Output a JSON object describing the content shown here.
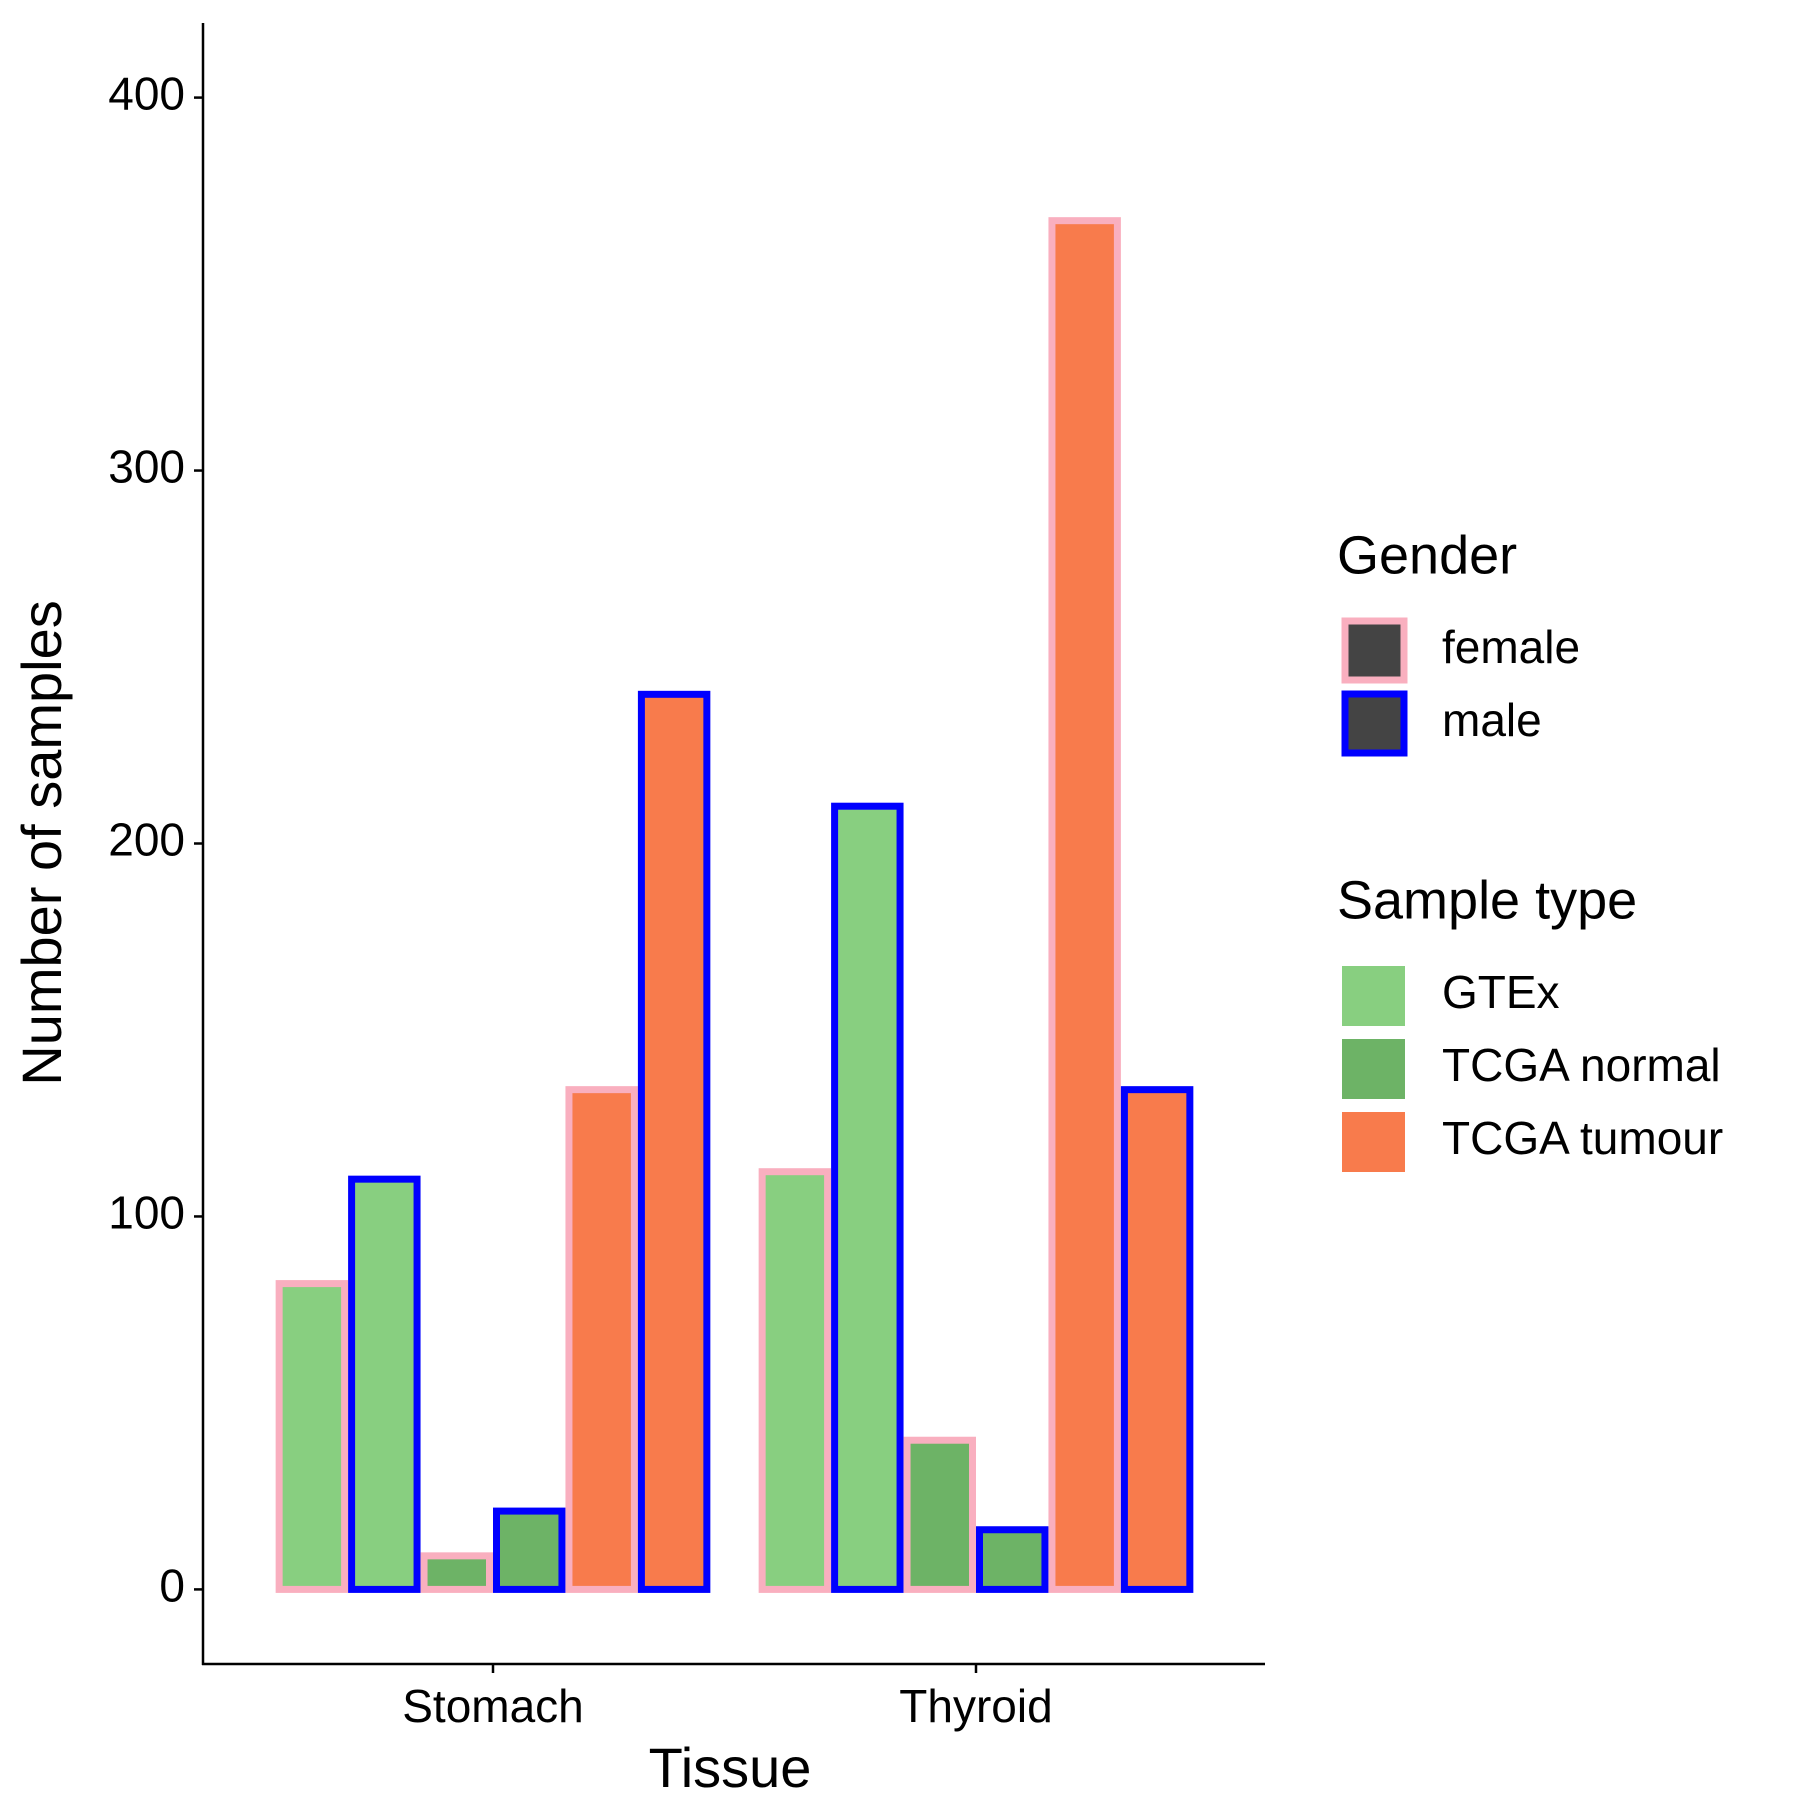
{
  "chart_data": {
    "type": "bar",
    "x_label": "Tissue",
    "y_label": "Number of samples",
    "categories": [
      "Stomach",
      "Thyroid"
    ],
    "series": [
      {
        "name": "GTEx",
        "gender": "female",
        "color": "#88cf80",
        "edgecolor": "#f9afbf",
        "values": [
          82,
          112
        ]
      },
      {
        "name": "GTEx",
        "gender": "male",
        "color": "#88cf80",
        "edgecolor": "#0000ff",
        "values": [
          110,
          210
        ]
      },
      {
        "name": "TCGA normal",
        "gender": "female",
        "color": "#6db366",
        "edgecolor": "#f9afbf",
        "values": [
          9,
          40
        ]
      },
      {
        "name": "TCGA normal",
        "gender": "male",
        "color": "#6db366",
        "edgecolor": "#0000ff",
        "values": [
          21,
          16
        ]
      },
      {
        "name": "TCGA tumour",
        "gender": "female",
        "color": "#f87b4c",
        "edgecolor": "#f9afbf",
        "values": [
          134,
          367
        ]
      },
      {
        "name": "TCGA tumour",
        "gender": "male",
        "color": "#f87b4c",
        "edgecolor": "#0000ff",
        "values": [
          240,
          134
        ]
      }
    ],
    "ylim": [
      -20,
      420
    ],
    "yticks": [
      0,
      100,
      200,
      300,
      400
    ],
    "legends": [
      {
        "title": "Gender",
        "key": "outline",
        "items": [
          {
            "name": "female",
            "color": "#f9afbf"
          },
          {
            "name": "male",
            "color": "#0000ff"
          }
        ]
      },
      {
        "title": "Sample type",
        "key": "fill",
        "items": [
          {
            "name": "GTEx",
            "color": "#88cf80"
          },
          {
            "name": "TCGA normal",
            "color": "#6db366"
          },
          {
            "name": "TCGA tumour",
            "color": "#f87b4c"
          }
        ]
      }
    ]
  }
}
